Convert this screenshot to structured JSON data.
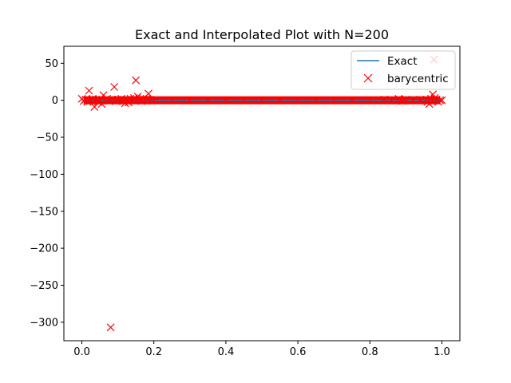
{
  "chart_data": {
    "type": "scatter",
    "title": "Exact and Interpolated Plot with N=200",
    "xlabel": "",
    "ylabel": "",
    "xlim": [
      -0.05,
      1.05
    ],
    "ylim": [
      -325,
      73
    ],
    "xticks": [
      0.0,
      0.2,
      0.4,
      0.6,
      0.8,
      1.0
    ],
    "xtick_labels": [
      "0.0",
      "0.2",
      "0.4",
      "0.6",
      "0.8",
      "1.0"
    ],
    "yticks": [
      50,
      0,
      -50,
      -100,
      -150,
      -200,
      -250,
      -300
    ],
    "ytick_labels": [
      "50",
      "0",
      "−50",
      "−100",
      "−150",
      "−200",
      "−250",
      "−300"
    ],
    "grid": false,
    "legend_position": "top-right",
    "series": [
      {
        "name": "Exact",
        "kind": "line",
        "color": "#1f77b4",
        "x": [
          0.0,
          1.0
        ],
        "y": [
          0.0,
          0.0
        ]
      },
      {
        "name": "barycentric",
        "kind": "marker-x",
        "color": "#ff0000",
        "x": [
          0.0,
          0.005,
          0.01,
          0.015,
          0.02,
          0.025,
          0.03,
          0.035,
          0.04,
          0.045,
          0.05,
          0.055,
          0.06,
          0.065,
          0.07,
          0.075,
          0.08,
          0.085,
          0.09,
          0.095,
          0.1,
          0.105,
          0.11,
          0.115,
          0.12,
          0.125,
          0.13,
          0.135,
          0.14,
          0.145,
          0.15,
          0.155,
          0.16,
          0.165,
          0.17,
          0.175,
          0.18,
          0.185,
          0.19,
          0.2,
          0.25,
          0.3,
          0.35,
          0.4,
          0.45,
          0.5,
          0.55,
          0.6,
          0.65,
          0.7,
          0.75,
          0.8,
          0.84,
          0.86,
          0.88,
          0.89,
          0.9,
          0.92,
          0.94,
          0.96,
          0.965,
          0.97,
          0.975,
          0.978,
          0.98,
          0.985,
          0.99,
          0.995,
          1.0
        ],
        "y": [
          2,
          -1,
          1,
          -2,
          13,
          0,
          2,
          -9,
          1,
          -2,
          1,
          -5,
          7,
          0,
          2,
          -1,
          -307,
          1,
          18,
          -1,
          1,
          0,
          2,
          -1,
          -4,
          1,
          -3,
          2,
          0,
          3,
          27,
          5,
          1,
          -1,
          2,
          0,
          2,
          9,
          1,
          0,
          0,
          0,
          0,
          0,
          0,
          0,
          0,
          0,
          0,
          0,
          0,
          0,
          1,
          0,
          2,
          -1,
          1,
          0,
          1,
          -2,
          -5,
          2,
          8,
          55,
          3,
          1,
          -2,
          0,
          0
        ]
      }
    ]
  }
}
